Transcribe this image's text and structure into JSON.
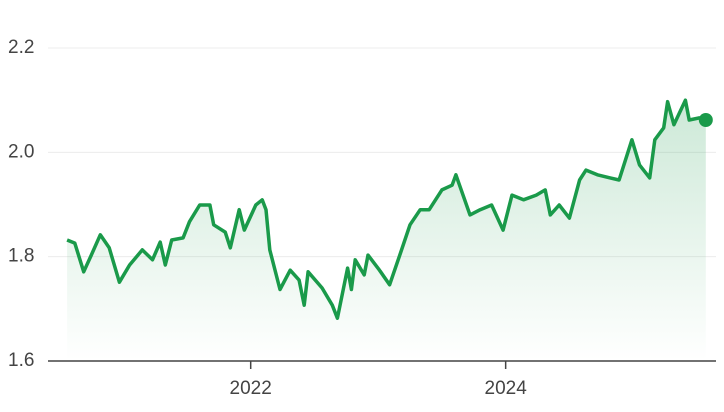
{
  "chart_data": {
    "type": "line",
    "x": [
      2020.56,
      2020.62,
      2020.69,
      2020.75,
      2020.82,
      2020.89,
      2020.97,
      2021.05,
      2021.15,
      2021.23,
      2021.29,
      2021.33,
      2021.38,
      2021.47,
      2021.52,
      2021.6,
      2021.68,
      2021.71,
      2021.8,
      2021.84,
      2021.91,
      2021.95,
      2022.04,
      2022.09,
      2022.12,
      2022.15,
      2022.23,
      2022.31,
      2022.38,
      2022.42,
      2022.45,
      2022.56,
      2022.64,
      2022.68,
      2022.76,
      2022.79,
      2022.82,
      2022.89,
      2022.92,
      2023.01,
      2023.09,
      2023.17,
      2023.25,
      2023.33,
      2023.4,
      2023.5,
      2023.58,
      2023.61,
      2023.72,
      2023.8,
      2023.89,
      2023.98,
      2024.05,
      2024.14,
      2024.24,
      2024.31,
      2024.35,
      2024.42,
      2024.5,
      2024.58,
      2024.63,
      2024.72,
      2024.82,
      2024.89,
      2024.99,
      2025.05,
      2025.13,
      2025.17,
      2025.24,
      2025.27,
      2025.32,
      2025.41,
      2025.44,
      2025.52,
      2025.57
    ],
    "series": [
      {
        "color": "#1a9a4a",
        "values": [
          1.832,
          1.826,
          1.771,
          1.803,
          1.842,
          1.817,
          1.751,
          1.784,
          1.813,
          1.794,
          1.828,
          1.784,
          1.832,
          1.836,
          1.867,
          1.899,
          1.899,
          1.861,
          1.847,
          1.817,
          1.89,
          1.851,
          1.899,
          1.909,
          1.89,
          1.813,
          1.737,
          1.774,
          1.755,
          1.707,
          1.771,
          1.74,
          1.707,
          1.682,
          1.778,
          1.737,
          1.794,
          1.765,
          1.803,
          1.774,
          1.746,
          1.803,
          1.861,
          1.89,
          1.89,
          1.928,
          1.937,
          1.957,
          1.88,
          1.89,
          1.899,
          1.851,
          1.918,
          1.909,
          1.918,
          1.928,
          1.88,
          1.899,
          1.874,
          1.947,
          1.966,
          1.957,
          1.951,
          1.947,
          2.024,
          1.976,
          1.951,
          2.024,
          2.047,
          2.097,
          2.053,
          2.1,
          2.062,
          2.066,
          2.062
        ]
      }
    ],
    "xlim": [
      2020.41,
      2025.65
    ],
    "xticks": [
      2022,
      2024
    ],
    "ylim": [
      1.6,
      2.2
    ],
    "yticks": [
      2.2,
      {
        "value": 2,
        "label": "2.0"
      },
      1.8,
      1.6
    ],
    "grid": true
  }
}
